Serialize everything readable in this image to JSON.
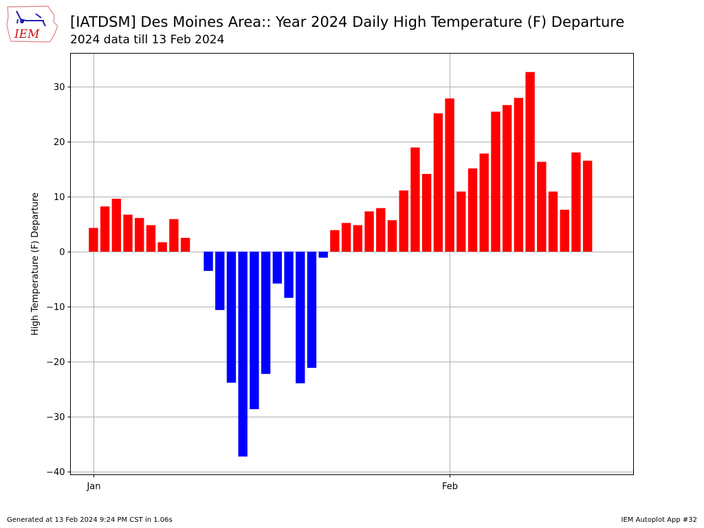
{
  "header": {
    "logo_text": "IEM",
    "title": "[IATDSM] Des Moines Area:: Year 2024 Daily High Temperature (F) Departure",
    "subtitle": "2024 data till 13 Feb 2024"
  },
  "footer": {
    "generated": "Generated at 13 Feb 2024 9:24 PM CST in 1.06s",
    "app": "IEM Autoplot App #32"
  },
  "colors": {
    "positive": "#ff0000",
    "negative": "#0000ff",
    "grid": "#b0b0b0"
  },
  "chart_data": {
    "type": "bar",
    "title": "[IATDSM] Des Moines Area:: Year 2024 Daily High Temperature (F) Departure",
    "subtitle": "2024 data till 13 Feb 2024",
    "xlabel": "",
    "ylabel": "High Temperature (F) Departure",
    "xlim": [
      "2023-12-30",
      "2024-02-17"
    ],
    "ylim": [
      -40.5,
      36
    ],
    "xticks": [
      {
        "date": "2024-01-01",
        "label": "Jan"
      },
      {
        "date": "2024-02-01",
        "label": "Feb"
      }
    ],
    "yticks": [
      -40,
      -30,
      -20,
      -10,
      0,
      10,
      20,
      30
    ],
    "grid": true,
    "bars": [
      {
        "date": "2024-01-01",
        "value": 4.3
      },
      {
        "date": "2024-01-02",
        "value": 8.2
      },
      {
        "date": "2024-01-03",
        "value": 9.6
      },
      {
        "date": "2024-01-04",
        "value": 6.7
      },
      {
        "date": "2024-01-05",
        "value": 6.1
      },
      {
        "date": "2024-01-06",
        "value": 4.8
      },
      {
        "date": "2024-01-07",
        "value": 1.7
      },
      {
        "date": "2024-01-08",
        "value": 5.9
      },
      {
        "date": "2024-01-09",
        "value": 2.5
      },
      {
        "date": "2024-01-11",
        "value": -3.5
      },
      {
        "date": "2024-01-12",
        "value": -10.6
      },
      {
        "date": "2024-01-13",
        "value": -23.8
      },
      {
        "date": "2024-01-14",
        "value": -37.2
      },
      {
        "date": "2024-01-15",
        "value": -28.6
      },
      {
        "date": "2024-01-16",
        "value": -22.2
      },
      {
        "date": "2024-01-17",
        "value": -5.8
      },
      {
        "date": "2024-01-18",
        "value": -8.4
      },
      {
        "date": "2024-01-19",
        "value": -23.9
      },
      {
        "date": "2024-01-20",
        "value": -21.1
      },
      {
        "date": "2024-01-21",
        "value": -1.1
      },
      {
        "date": "2024-01-22",
        "value": 3.9
      },
      {
        "date": "2024-01-23",
        "value": 5.2
      },
      {
        "date": "2024-01-24",
        "value": 4.8
      },
      {
        "date": "2024-01-25",
        "value": 7.3
      },
      {
        "date": "2024-01-26",
        "value": 7.9
      },
      {
        "date": "2024-01-27",
        "value": 5.7
      },
      {
        "date": "2024-01-28",
        "value": 11.1
      },
      {
        "date": "2024-01-29",
        "value": 18.9
      },
      {
        "date": "2024-01-30",
        "value": 14.1
      },
      {
        "date": "2024-01-31",
        "value": 25.1
      },
      {
        "date": "2024-02-01",
        "value": 27.8
      },
      {
        "date": "2024-02-02",
        "value": 10.9
      },
      {
        "date": "2024-02-03",
        "value": 15.1
      },
      {
        "date": "2024-02-04",
        "value": 17.8
      },
      {
        "date": "2024-02-05",
        "value": 25.4
      },
      {
        "date": "2024-02-06",
        "value": 26.6
      },
      {
        "date": "2024-02-07",
        "value": 27.9
      },
      {
        "date": "2024-02-08",
        "value": 32.6
      },
      {
        "date": "2024-02-09",
        "value": 16.3
      },
      {
        "date": "2024-02-10",
        "value": 10.9
      },
      {
        "date": "2024-02-11",
        "value": 7.6
      },
      {
        "date": "2024-02-12",
        "value": 18.0
      },
      {
        "date": "2024-02-13",
        "value": 16.5
      }
    ]
  }
}
